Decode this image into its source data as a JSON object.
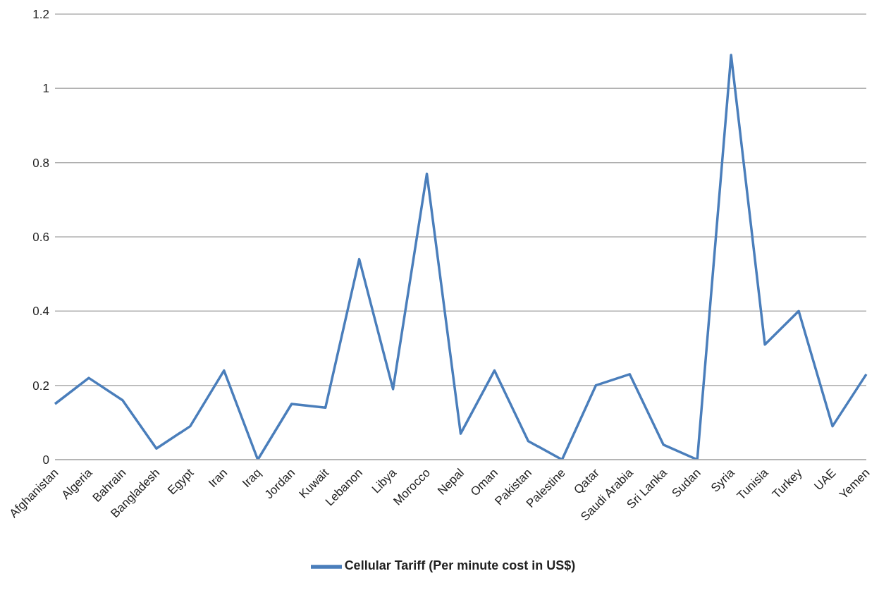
{
  "chart_data": {
    "type": "line",
    "categories": [
      "Afghanistan",
      "Algeria",
      "Bahrain",
      "Bangladesh",
      "Egypt",
      "Iran",
      "Iraq",
      "Jordan",
      "Kuwait",
      "Lebanon",
      "Libya",
      "Morocco",
      "Nepal",
      "Oman",
      "Pakistan",
      "Palestine",
      "Qatar",
      "Saudi Arabia",
      "Sri Lanka",
      "Sudan",
      "Syria",
      "Tunisia",
      "Turkey",
      "UAE",
      "Yemen"
    ],
    "series": [
      {
        "name": "Cellular Tariff (Per minute cost in US$)",
        "color": "#4a7ebb",
        "values": [
          0.15,
          0.22,
          0.16,
          0.03,
          0.09,
          0.24,
          0,
          0.15,
          0.14,
          0.54,
          0.19,
          0.77,
          0.07,
          0.24,
          0.05,
          0,
          0.2,
          0.23,
          0.04,
          0,
          1.09,
          0.31,
          0.4,
          0.09,
          0.23
        ]
      }
    ],
    "ylim": [
      0,
      1.2
    ],
    "yticks": [
      0,
      0.2,
      0.4,
      0.6,
      0.8,
      1,
      1.2
    ],
    "grid": "y",
    "legend": "bottom",
    "marker": "none",
    "line_style": "solid"
  }
}
